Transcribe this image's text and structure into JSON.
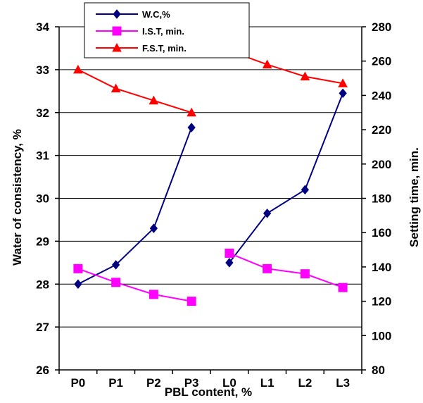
{
  "chart_data": {
    "type": "line",
    "categories": [
      "P0",
      "P1",
      "P2",
      "P3",
      "L0",
      "L1",
      "L2",
      "L3"
    ],
    "xlabel": "PBL content, %",
    "ylabel_left": "Water of consistency, %",
    "ylabel_right": "Setting time, min.",
    "ylim_left": [
      26,
      34
    ],
    "yticks_left": [
      "26",
      "27",
      "28",
      "29",
      "30",
      "31",
      "32",
      "33",
      "34"
    ],
    "ylim_right": [
      80,
      280
    ],
    "yticks_right": [
      "80",
      "100",
      "120",
      "140",
      "160",
      "180",
      "200",
      "220",
      "240",
      "260",
      "280"
    ],
    "grid": true,
    "legend_position": "top-left",
    "series": [
      {
        "name": "W.C,%",
        "axis": "left",
        "color": "#000080",
        "marker": "diamond",
        "groups": [
          {
            "x": [
              "P0",
              "P1",
              "P2",
              "P3"
            ],
            "values": [
              28.0,
              28.45,
              29.3,
              31.65
            ]
          },
          {
            "x": [
              "L0",
              "L1",
              "L2",
              "L3"
            ],
            "values": [
              28.5,
              29.65,
              30.2,
              32.45
            ]
          }
        ]
      },
      {
        "name": "I.S.T, min.",
        "axis": "right",
        "color": "#ff00ff",
        "marker": "square",
        "groups": [
          {
            "x": [
              "P0",
              "P1",
              "P2",
              "P3"
            ],
            "values": [
              139,
              131,
              124,
              120
            ]
          },
          {
            "x": [
              "L0",
              "L1",
              "L2",
              "L3"
            ],
            "values": [
              148,
              139,
              136,
              128
            ]
          }
        ]
      },
      {
        "name": "F.S.T, min.",
        "axis": "right",
        "color": "#ff0000",
        "marker": "triangle",
        "groups": [
          {
            "x": [
              "P0",
              "P1",
              "P2",
              "P3"
            ],
            "values": [
              255,
              244,
              237,
              230
            ]
          },
          {
            "x": [
              "L0",
              "L1",
              "L2",
              "L3"
            ],
            "values": [
              266,
              258,
              251,
              247
            ]
          }
        ]
      }
    ]
  }
}
